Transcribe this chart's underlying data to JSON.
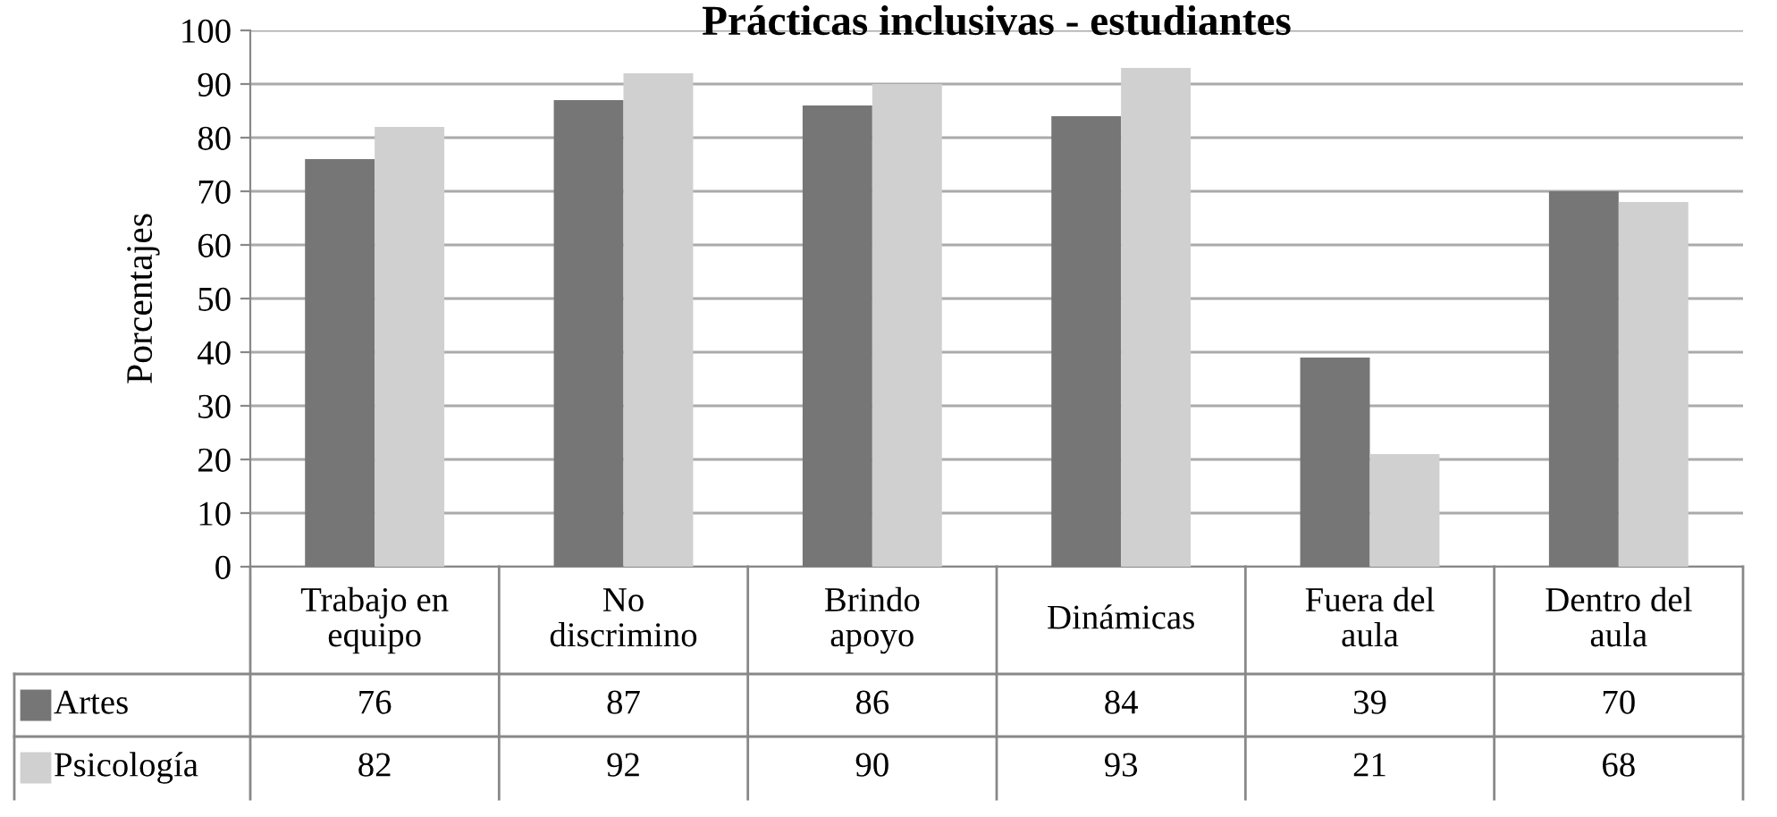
{
  "chart_data": {
    "type": "bar",
    "title": "Prácticas inclusivas - estudiantes",
    "ylabel": "Porcentajes",
    "categories": [
      "Trabajo en equipo",
      "No discrimino",
      "Brindo apoyo",
      "Dinámicas",
      "Fuera del aula",
      "Dentro del aula"
    ],
    "series": [
      {
        "name": "Artes",
        "color": "#767676",
        "values": [
          76,
          87,
          86,
          84,
          39,
          70
        ]
      },
      {
        "name": "Psicología",
        "color": "#d0d0d0",
        "values": [
          82,
          92,
          90,
          93,
          21,
          68
        ]
      }
    ],
    "ylim": [
      0,
      100
    ],
    "yticks": [
      0,
      10,
      20,
      30,
      40,
      50,
      60,
      70,
      80,
      90,
      100
    ],
    "grid": "y",
    "legend": "bottom",
    "data_labels": true
  }
}
